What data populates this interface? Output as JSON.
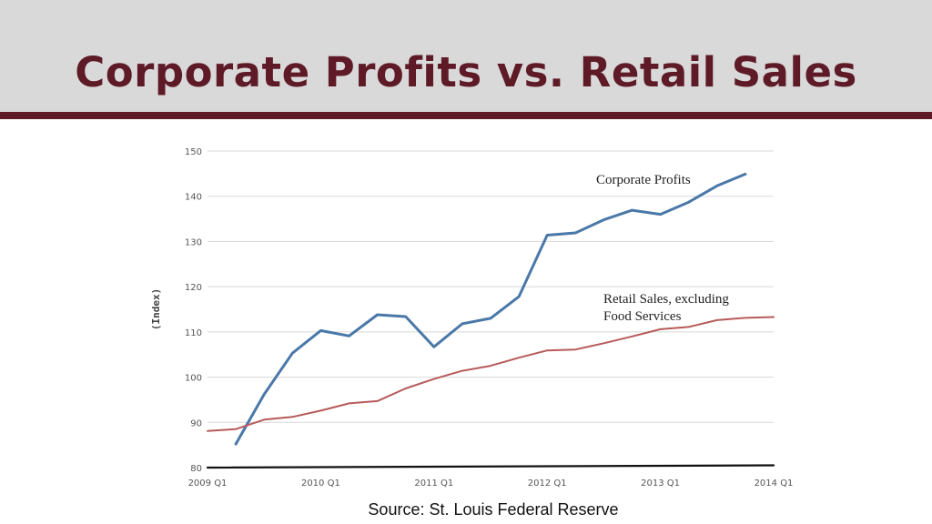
{
  "slide": {
    "title": "Corporate Profits vs. Retail Sales",
    "source": "Source:  St. Louis Federal Reserve"
  },
  "colors": {
    "header_bg": "#d9d9d9",
    "title_color": "#5e1a26",
    "grid": "#d8d8d8"
  },
  "chart_data": {
    "type": "line",
    "title": "",
    "xlabel": "",
    "ylabel": "(Index)",
    "x_ticks": [
      "2009 Q1",
      "2010 Q1",
      "2011 Q1",
      "2012 Q1",
      "2013 Q1",
      "2014 Q1"
    ],
    "x_range": [
      "2009 Q1",
      "2014 Q1"
    ],
    "y_ticks": [
      80,
      90,
      100,
      110,
      120,
      130,
      140,
      150
    ],
    "ylim": [
      80,
      150
    ],
    "grid": true,
    "series": [
      {
        "name": "Corporate Profits",
        "color": "#4a78a8",
        "annotation": [
          "Corporate Profits"
        ],
        "x": [
          "2009 Q2",
          "2009 Q3",
          "2009 Q4",
          "2010 Q1",
          "2010 Q2",
          "2010 Q3",
          "2010 Q4",
          "2011 Q1",
          "2011 Q2",
          "2011 Q3",
          "2011 Q4",
          "2012 Q1",
          "2012 Q2",
          "2012 Q3",
          "2012 Q4",
          "2013 Q1",
          "2013 Q2",
          "2013 Q3",
          "2013 Q4"
        ],
        "values": [
          85.2,
          96.2,
          105.3,
          110.3,
          109.1,
          113.8,
          113.4,
          106.7,
          111.8,
          113.0,
          117.8,
          131.4,
          131.9,
          134.8,
          136.9,
          136.0,
          138.7,
          142.3,
          144.9
        ]
      },
      {
        "name": "Retail Sales, excluding Food Services",
        "color": "#b85a5a",
        "annotation": [
          "Retail Sales, excluding",
          "Food Services"
        ],
        "x": [
          "2009 Q1",
          "2009 Q2",
          "2009 Q3",
          "2009 Q4",
          "2010 Q1",
          "2010 Q2",
          "2010 Q3",
          "2010 Q4",
          "2011 Q1",
          "2011 Q2",
          "2011 Q3",
          "2011 Q4",
          "2012 Q1",
          "2012 Q2",
          "2012 Q3",
          "2012 Q4",
          "2013 Q1",
          "2013 Q2",
          "2013 Q3",
          "2013 Q4",
          "2014 Q1"
        ],
        "values": [
          88.1,
          88.5,
          90.6,
          91.2,
          92.6,
          94.2,
          94.7,
          97.5,
          99.6,
          101.4,
          102.5,
          104.3,
          105.9,
          106.1,
          107.5,
          109.0,
          110.6,
          111.1,
          112.6,
          113.1,
          113.3
        ]
      },
      {
        "name": "",
        "color": "#111111",
        "annotation": [],
        "x": [
          "2009 Q1",
          "2014 Q1"
        ],
        "values": [
          80.0,
          80.5
        ]
      }
    ]
  }
}
